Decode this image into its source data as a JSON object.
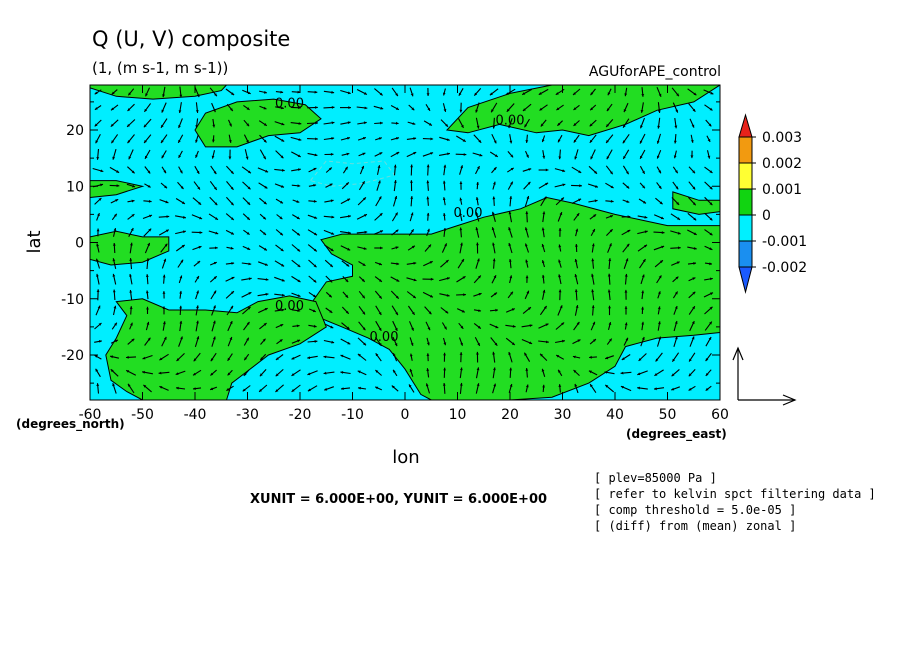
{
  "chart_data": {
    "type": "heatmap",
    "title": "Q (U, V) composite",
    "subtitle": "(1, (m s-1, m s-1))",
    "dataset_label": "AGUforAPE_control",
    "xlabel": "lon",
    "ylabel": "lat",
    "x_unit_label": "(degrees_east)",
    "y_unit_label": "(degrees_north)",
    "xlim": [
      -60,
      60
    ],
    "ylim": [
      -28,
      28
    ],
    "x_ticks": [
      -60,
      -50,
      -40,
      -30,
      -20,
      -10,
      0,
      10,
      20,
      30,
      40,
      50,
      60
    ],
    "y_ticks": [
      -20,
      -10,
      0,
      10,
      20
    ],
    "contour_label": "0.00",
    "contour_label_positions": [
      [
        -22,
        24
      ],
      [
        20,
        21
      ],
      [
        12,
        4.5
      ],
      [
        -22,
        -12
      ],
      [
        -4,
        -17.5
      ]
    ],
    "colorbar": {
      "levels": [
        "0.003",
        "0.002",
        "0.001",
        "0",
        "-0.001",
        "-0.002"
      ],
      "colors": {
        "over": "#e8231b",
        "c0_002": "#f29a10",
        "c0_001": "#ffff33",
        "c0": "#11d411",
        "cneg0_001": "#00f0ff",
        "cneg0_002": "#1a8ff0",
        "under": "#1a5aff"
      }
    },
    "palette": {
      "positive": "#22dd22",
      "negative": "#00eeff",
      "contour": "#000000",
      "arrow": "#000000"
    },
    "positive_regions_lonlat": [
      [
        [
          -60,
          28
        ],
        [
          -60,
          27.5
        ],
        [
          -55,
          26
        ],
        [
          -48,
          25.5
        ],
        [
          -40,
          26
        ],
        [
          -35,
          27
        ],
        [
          -34,
          28
        ]
      ],
      [
        [
          -40,
          20
        ],
        [
          -38,
          23
        ],
        [
          -32,
          25
        ],
        [
          -25,
          25.5
        ],
        [
          -19,
          24.5
        ],
        [
          -16,
          22
        ],
        [
          -20,
          19.5
        ],
        [
          -26,
          19
        ],
        [
          -32,
          17
        ],
        [
          -38,
          17
        ]
      ],
      [
        [
          8,
          20
        ],
        [
          12,
          24
        ],
        [
          20,
          26.5
        ],
        [
          28,
          28
        ],
        [
          60,
          28
        ],
        [
          55,
          25
        ],
        [
          48,
          23.5
        ],
        [
          42,
          21
        ],
        [
          35,
          19
        ],
        [
          30,
          20
        ],
        [
          25,
          19.5
        ],
        [
          18,
          21
        ],
        [
          12,
          19.5
        ]
      ],
      [
        [
          -60,
          11
        ],
        [
          -55,
          11
        ],
        [
          -50,
          10
        ],
        [
          -55,
          8.5
        ],
        [
          -60,
          8
        ]
      ],
      [
        [
          -60,
          1
        ],
        [
          -55,
          2
        ],
        [
          -50,
          1
        ],
        [
          -45,
          1
        ],
        [
          -45,
          -1.5
        ],
        [
          -50,
          -3.5
        ],
        [
          -56,
          -4
        ],
        [
          -60,
          -3
        ]
      ],
      [
        [
          -16,
          0.5
        ],
        [
          -12,
          1.5
        ],
        [
          -5,
          1.5
        ],
        [
          5,
          1.5
        ],
        [
          10,
          3
        ],
        [
          15,
          4.5
        ],
        [
          22,
          6
        ],
        [
          27,
          8
        ],
        [
          32,
          7
        ],
        [
          40,
          5
        ],
        [
          45,
          4
        ],
        [
          50,
          3
        ],
        [
          55,
          3
        ],
        [
          60,
          3
        ],
        [
          60,
          -16
        ],
        [
          55,
          -16.5
        ],
        [
          48,
          -17
        ],
        [
          42,
          -18.5
        ],
        [
          40,
          -22
        ],
        [
          35,
          -25
        ],
        [
          28,
          -27.5
        ],
        [
          20,
          -28
        ],
        [
          5,
          -28
        ],
        [
          3,
          -27
        ],
        [
          0,
          -22.5
        ],
        [
          -3,
          -19
        ],
        [
          -7,
          -17
        ],
        [
          -12,
          -15
        ],
        [
          -16,
          -13.5
        ],
        [
          -18,
          -11
        ],
        [
          -15,
          -7
        ],
        [
          -10,
          -6
        ],
        [
          -10,
          -4
        ],
        [
          -14,
          -2
        ]
      ],
      [
        [
          -57,
          -20
        ],
        [
          -55,
          -17
        ],
        [
          -53,
          -13
        ],
        [
          -55,
          -10.5
        ],
        [
          -50,
          -10
        ],
        [
          -45,
          -12
        ],
        [
          -38,
          -12
        ],
        [
          -32,
          -12.5
        ],
        [
          -28,
          -10.5
        ],
        [
          -22,
          -9.5
        ],
        [
          -17,
          -10.5
        ],
        [
          -15,
          -15
        ],
        [
          -20,
          -18
        ],
        [
          -26,
          -20
        ],
        [
          -33,
          -25
        ],
        [
          -34,
          -28
        ],
        [
          -50,
          -28
        ],
        [
          -53,
          -26.5
        ],
        [
          -56,
          -24.5
        ]
      ],
      [
        [
          51,
          9
        ],
        [
          56,
          7.5
        ],
        [
          60,
          7.5
        ],
        [
          60,
          5.5
        ],
        [
          56,
          5
        ],
        [
          51,
          6
        ]
      ]
    ],
    "dashed_contour_lonlat": [
      [
        -18,
        11
      ],
      [
        -15,
        14.5
      ],
      [
        -10,
        14
      ],
      [
        -4,
        14.5
      ],
      [
        -2,
        12
      ],
      [
        -8,
        10.5
      ],
      [
        -14,
        10
      ]
    ],
    "vector_scale_note": "XUNIT = 6.000E+00, YUNIT = 6.000E+00",
    "notes": [
      "[ plev=85000 Pa ]",
      "[ refer to kelvin spct filtering data ]",
      "[ comp threshold = 5.0e-05 ]",
      "[ (diff) from (mean) zonal ]"
    ]
  }
}
